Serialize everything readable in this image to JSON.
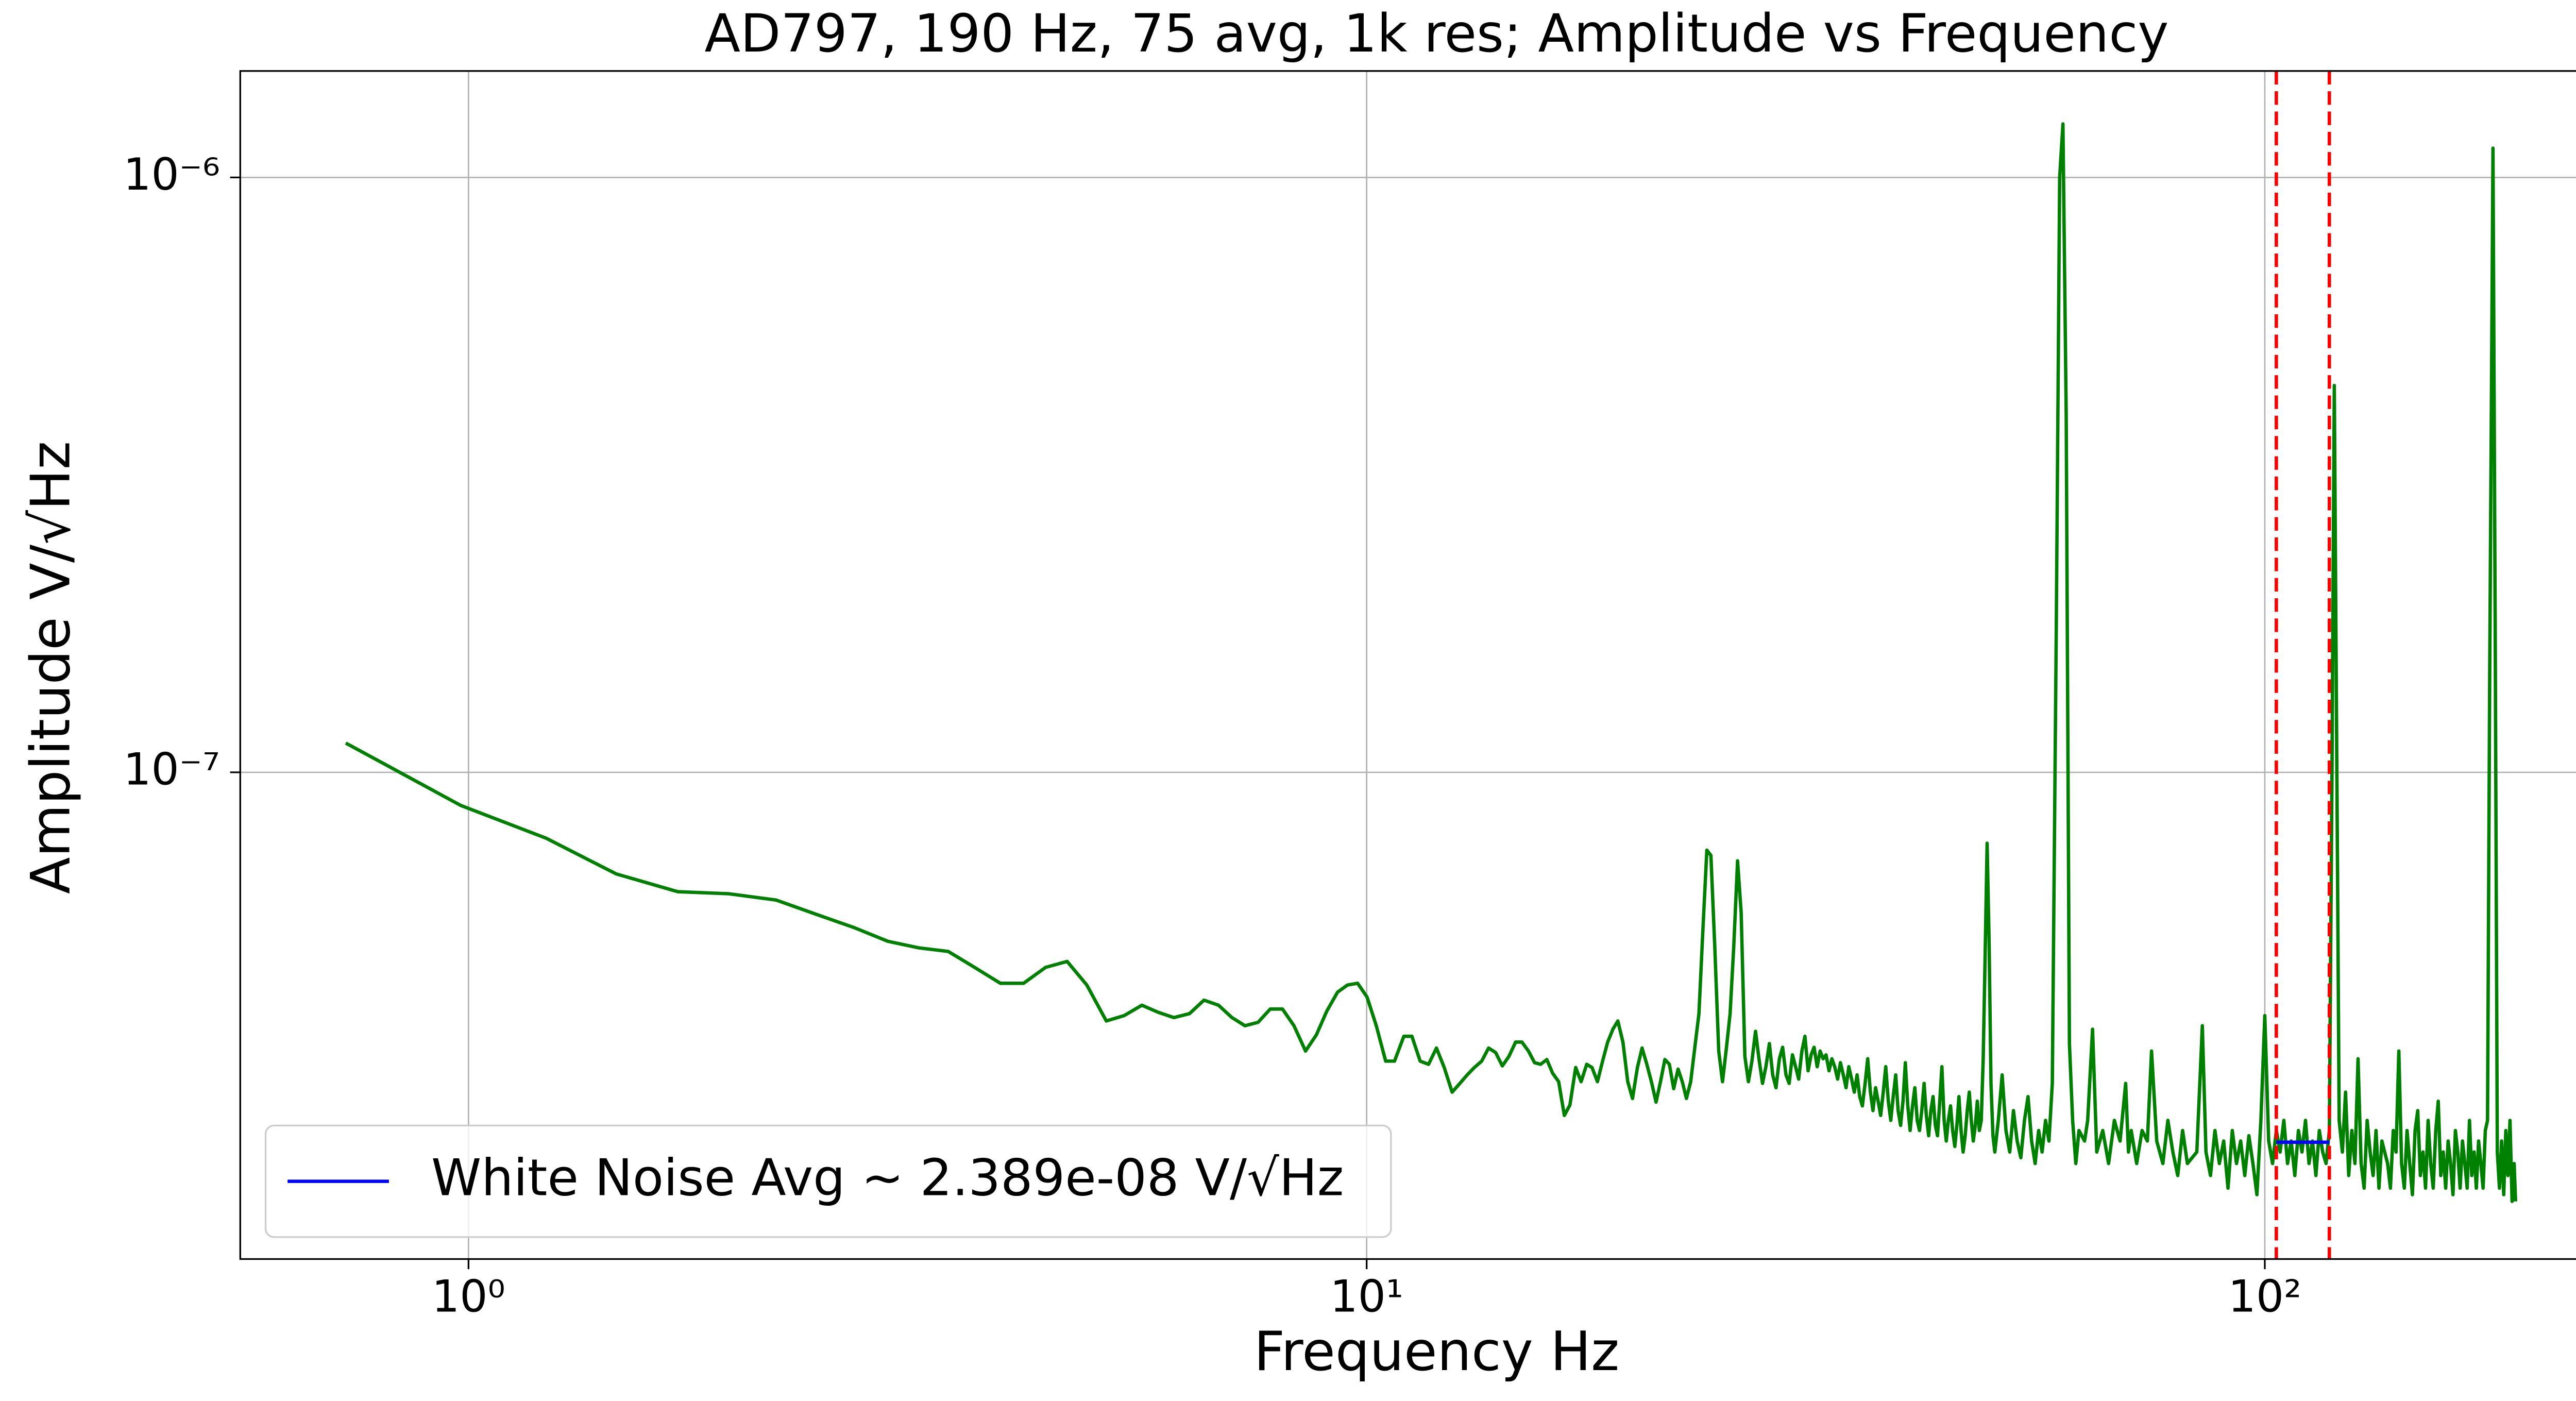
{
  "chart_data": {
    "type": "line",
    "title": "AD797, 190 Hz, 75 avg, 1k res; Amplitude vs Frequency",
    "xlabel": "Frequency Hz",
    "ylabel": "Amplitude V/√Hz",
    "xscale": "log",
    "yscale": "log",
    "grid": true,
    "legend": "lower left",
    "xlim": [
      0.557,
      257
    ],
    "ylim": [
      1.52e-08,
      1.51e-06
    ],
    "xticks": [
      {
        "value": 1,
        "label": "10⁰"
      },
      {
        "value": 10,
        "label": "10¹"
      },
      {
        "value": 100,
        "label": "10²"
      }
    ],
    "yticks": [
      {
        "value": 1e-07,
        "label": "10⁻⁷"
      },
      {
        "value": 1e-06,
        "label": "10⁻⁶"
      }
    ],
    "vlines": {
      "color": "#ff0000",
      "x": [
        103,
        118
      ]
    },
    "series": [
      {
        "color": "#008000",
        "x": [
          0.73,
          0.98,
          1.22,
          1.46,
          1.71,
          1.95,
          2.2,
          2.44,
          2.69,
          2.93,
          3.17,
          3.42,
          3.66,
          3.91,
          4.15,
          4.39,
          4.64,
          4.88,
          5.13,
          5.37,
          5.62,
          5.86,
          6.1,
          6.35,
          6.59,
          6.84,
          7.08,
          7.32,
          7.57,
          7.81,
          8.06,
          8.3,
          8.55,
          8.79,
          9.03,
          9.28,
          9.52,
          9.77,
          10.01,
          10.25,
          10.5,
          10.74,
          11,
          11.23,
          11.47,
          11.72,
          11.96,
          12.2,
          12.45,
          12.7,
          12.94,
          13.18,
          13.43,
          13.67,
          13.92,
          14.16,
          14.4,
          14.65,
          14.89,
          15.14,
          15.38,
          15.62,
          15.87,
          16.11,
          16.36,
          16.6,
          16.84,
          17.09,
          17.33,
          17.58,
          17.82,
          18.07,
          18.31,
          18.55,
          18.8,
          19.04,
          19.29,
          19.53,
          19.77,
          20.02,
          20.26,
          20.51,
          20.75,
          21,
          21.24,
          21.48,
          21.73,
          21.97,
          22.22,
          22.46,
          22.7,
          22.95,
          23.19,
          23.44,
          23.68,
          23.92,
          24.17,
          24.41,
          24.66,
          24.9,
          25.15,
          25.39,
          25.63,
          25.88,
          26.12,
          26.37,
          26.61,
          26.85,
          27.1,
          27.34,
          27.59,
          27.83,
          28.08,
          28.32,
          28.56,
          28.81,
          29.05,
          29.3,
          29.54,
          29.79,
          30.03,
          30.27,
          30.52,
          30.76,
          31.01,
          31.25,
          31.49,
          31.74,
          31.98,
          32.23,
          32.47,
          32.72,
          32.96,
          33.2,
          33.45,
          33.69,
          33.94,
          34.18,
          34.42,
          34.67,
          34.91,
          35.16,
          35.4,
          35.64,
          35.89,
          36.13,
          36.38,
          36.62,
          36.87,
          37.11,
          37.35,
          37.6,
          37.84,
          38.09,
          38.33,
          38.57,
          38.82,
          39.06,
          39.31,
          39.55,
          39.79,
          40.04,
          40.28,
          40.53,
          40.77,
          41.02,
          41.26,
          41.5,
          41.75,
          41.99,
          42.24,
          42.48,
          42.72,
          42.97,
          43.21,
          43.46,
          43.7,
          43.95,
          44.19,
          44.43,
          44.68,
          44.92,
          45.17,
          45.41,
          45.65,
          45.9,
          46.14,
          46.39,
          46.63,
          46.88,
          47.12,
          47.36,
          47.61,
          47.85,
          48.1,
          48.34,
          48.58,
          48.83,
          49.07,
          49.32,
          49.56,
          49.81,
          50.05,
          50.5,
          51,
          51.5,
          52,
          52.5,
          53,
          53.5,
          54,
          54.5,
          55,
          55.5,
          56,
          56.5,
          57,
          57.5,
          58,
          58.6,
          59.1,
          59.6,
          60.1,
          60.6,
          61.1,
          61.6,
          62.1,
          63,
          63.5,
          64.3,
          65,
          66,
          67,
          68,
          69,
          70,
          70.5,
          71,
          72,
          73,
          74,
          74.8,
          75.8,
          77,
          78,
          79,
          80,
          81,
          82,
          84,
          85.2,
          86,
          87,
          88,
          89,
          90,
          91,
          92,
          93,
          94,
          95,
          96,
          97,
          98,
          99,
          100,
          101,
          102,
          103,
          104,
          105,
          106,
          107,
          108,
          109,
          110,
          111,
          112,
          113,
          114,
          115,
          116,
          117,
          118,
          118.8,
          119.5,
          120.2,
          121,
          122,
          123,
          124,
          125,
          126,
          127,
          128,
          129,
          130,
          131,
          132,
          133,
          134,
          135,
          137,
          138,
          139,
          140,
          141,
          142,
          143,
          144,
          145,
          146,
          147,
          148,
          149,
          150,
          151,
          152,
          153,
          154,
          155,
          156,
          157,
          158,
          159,
          160,
          161,
          162,
          163,
          164,
          165,
          166,
          167,
          168,
          169,
          170,
          171,
          172,
          173,
          174,
          175,
          176,
          177,
          178,
          179.5,
          180.5,
          181.5,
          182.5,
          183.5,
          184.5,
          185.5,
          186.5,
          187.5,
          188.5,
          189.5,
          190.2
        ],
        "values": [
          1.12e-07,
          8.8e-08,
          7.75e-08,
          6.75e-08,
          6.3e-08,
          6.25e-08,
          6.1e-08,
          5.77e-08,
          5.48e-08,
          5.2e-08,
          5.07e-08,
          5e-08,
          4.7e-08,
          4.42e-08,
          4.42e-08,
          4.7e-08,
          4.81e-08,
          4.39e-08,
          3.82e-08,
          3.9e-08,
          4.06e-08,
          3.95e-08,
          3.87e-08,
          3.93e-08,
          4.14e-08,
          4.06e-08,
          3.87e-08,
          3.75e-08,
          3.8e-08,
          4e-08,
          4e-08,
          3.75e-08,
          3.4e-08,
          3.62e-08,
          3.97e-08,
          4.27e-08,
          4.39e-08,
          4.42e-08,
          4.19e-08,
          3.75e-08,
          3.27e-08,
          3.27e-08,
          3.6e-08,
          3.6e-08,
          3.27e-08,
          3.23e-08,
          3.44e-08,
          3.19e-08,
          2.9e-08,
          3e-08,
          3.1e-08,
          3.19e-08,
          3.27e-08,
          3.44e-08,
          3.38e-08,
          3.21e-08,
          3.33e-08,
          3.52e-08,
          3.52e-08,
          3.4e-08,
          3.25e-08,
          3.23e-08,
          3.29e-08,
          3.12e-08,
          3.02e-08,
          2.65e-08,
          2.76e-08,
          3.19e-08,
          3.02e-08,
          3.23e-08,
          3.19e-08,
          3.02e-08,
          3.27e-08,
          3.52e-08,
          3.7e-08,
          3.82e-08,
          3.52e-08,
          3.02e-08,
          2.83e-08,
          3.19e-08,
          3.44e-08,
          3.23e-08,
          3.02e-08,
          2.79e-08,
          3.02e-08,
          3.29e-08,
          3.23e-08,
          2.94e-08,
          3.17e-08,
          3.02e-08,
          2.83e-08,
          3.02e-08,
          3.44e-08,
          3.93e-08,
          5.44e-08,
          7.4e-08,
          7.25e-08,
          5.1e-08,
          3.4e-08,
          3.02e-08,
          3.44e-08,
          3.93e-08,
          5.1e-08,
          7.1e-08,
          5.81e-08,
          3.33e-08,
          3.02e-08,
          3.27e-08,
          3.67e-08,
          3.3e-08,
          3e-08,
          3.2e-08,
          3.5e-08,
          3.1e-08,
          2.95e-08,
          3.3e-08,
          3.45e-08,
          3.1e-08,
          3e-08,
          3.35e-08,
          3.2e-08,
          3.05e-08,
          3.4e-08,
          3.6e-08,
          3.15e-08,
          3.35e-08,
          3.45e-08,
          3.2e-08,
          3.4e-08,
          3.3e-08,
          3.35e-08,
          3.15e-08,
          3.3e-08,
          3.2e-08,
          3.05e-08,
          3.25e-08,
          3.1e-08,
          2.95e-08,
          3.2e-08,
          3.05e-08,
          2.9e-08,
          3.1e-08,
          2.85e-08,
          2.75e-08,
          3e-08,
          3.3e-08,
          2.9e-08,
          2.7e-08,
          2.95e-08,
          2.8e-08,
          2.65e-08,
          2.9e-08,
          3.2e-08,
          2.8e-08,
          2.6e-08,
          2.85e-08,
          3.1e-08,
          2.7e-08,
          2.55e-08,
          2.8e-08,
          3.25e-08,
          2.75e-08,
          2.5e-08,
          2.75e-08,
          2.95e-08,
          2.6e-08,
          2.5e-08,
          2.7e-08,
          3e-08,
          2.65e-08,
          2.45e-08,
          2.7e-08,
          2.85e-08,
          2.55e-08,
          2.45e-08,
          2.8e-08,
          3.2e-08,
          2.6e-08,
          2.4e-08,
          2.6e-08,
          2.75e-08,
          2.5e-08,
          2.35e-08,
          2.55e-08,
          2.85e-08,
          2.5e-08,
          2.3e-08,
          2.45e-08,
          2.7e-08,
          2.9e-08,
          2.6e-08,
          2.4e-08,
          2.55e-08,
          2.8e-08,
          2.5e-08,
          2.6e-08,
          3.3e-08,
          5e-08,
          7.6e-08,
          5.2e-08,
          3e-08,
          2.45e-08,
          2.3e-08,
          2.6e-08,
          3.1e-08,
          2.5e-08,
          2.3e-08,
          2.7e-08,
          2.4e-08,
          2.25e-08,
          2.6e-08,
          2.85e-08,
          2.4e-08,
          2.2e-08,
          2.5e-08,
          2.3e-08,
          2.6e-08,
          2.4e-08,
          3e-08,
          1.8e-07,
          1e-06,
          1.23e-06,
          4e-07,
          3.5e-08,
          2.6e-08,
          2.2e-08,
          2.5e-08,
          2.4e-08,
          2.6e-08,
          3.7e-08,
          2.3e-08,
          2.5e-08,
          2.2e-08,
          2.6e-08,
          2.4e-08,
          3e-08,
          2.3e-08,
          2.5e-08,
          2.2e-08,
          2.5e-08,
          2.4e-08,
          3.4e-08,
          2.4e-08,
          2.2e-08,
          2.6e-08,
          2.3e-08,
          2.1e-08,
          2.5e-08,
          2.2e-08,
          2.3e-08,
          3.75e-08,
          2.3e-08,
          2.1e-08,
          2.5e-08,
          2.2e-08,
          2.4e-08,
          2e-08,
          2.5e-08,
          2.2e-08,
          2.4e-08,
          2.1e-08,
          2.45e-08,
          2.2e-08,
          1.95e-08,
          2.6e-08,
          3.9e-08,
          2.4e-08,
          2.2e-08,
          2.5e-08,
          2.3e-08,
          2.6e-08,
          2.2e-08,
          2.4e-08,
          2.1e-08,
          2.5e-08,
          2.3e-08,
          2.6e-08,
          2.2e-08,
          2.4e-08,
          2.1e-08,
          2.5e-08,
          2.3e-08,
          2.2e-08,
          2.5e-08,
          1e-07,
          4.47e-07,
          1.2e-07,
          2.6e-08,
          2.3e-08,
          2.9e-08,
          2.1e-08,
          2.5e-08,
          2.2e-08,
          3.3e-08,
          2.2e-08,
          2e-08,
          2.6e-08,
          2.3e-08,
          2.1e-08,
          2.5e-08,
          2e-08,
          2.4e-08,
          2.2e-08,
          2e-08,
          2.5e-08,
          2.3e-08,
          3.4e-08,
          2.2e-08,
          2e-08,
          2.5e-08,
          2.2e-08,
          1.95e-08,
          2.5e-08,
          2.7e-08,
          2.1e-08,
          2.3e-08,
          2e-08,
          2.6e-08,
          2.2e-08,
          2e-08,
          2.5e-08,
          2.8e-08,
          2.1e-08,
          2.3e-08,
          2e-08,
          2.4e-08,
          2.2e-08,
          1.95e-08,
          2.5e-08,
          2.3e-08,
          2e-08,
          2.4e-08,
          2.2e-08,
          2e-08,
          2.6e-08,
          2.1e-08,
          2.3e-08,
          2e-08,
          2.4e-08,
          2.2e-08,
          2e-08,
          2.5e-08,
          2.6e-08,
          1.5e-07,
          1.12e-06,
          1.8e-07,
          2.3e-08,
          2e-08,
          2.4e-08,
          1.95e-08,
          2.5e-08,
          2.1e-08,
          2.6e-08,
          1.9e-08,
          2.2e-08,
          1.9e-08
        ]
      },
      {
        "name": "White Noise Avg ~ 2.389e-08 V/√Hz",
        "color": "#0000ff",
        "x": [
          103,
          118
        ],
        "values": [
          2.389e-08,
          2.389e-08
        ]
      }
    ]
  }
}
